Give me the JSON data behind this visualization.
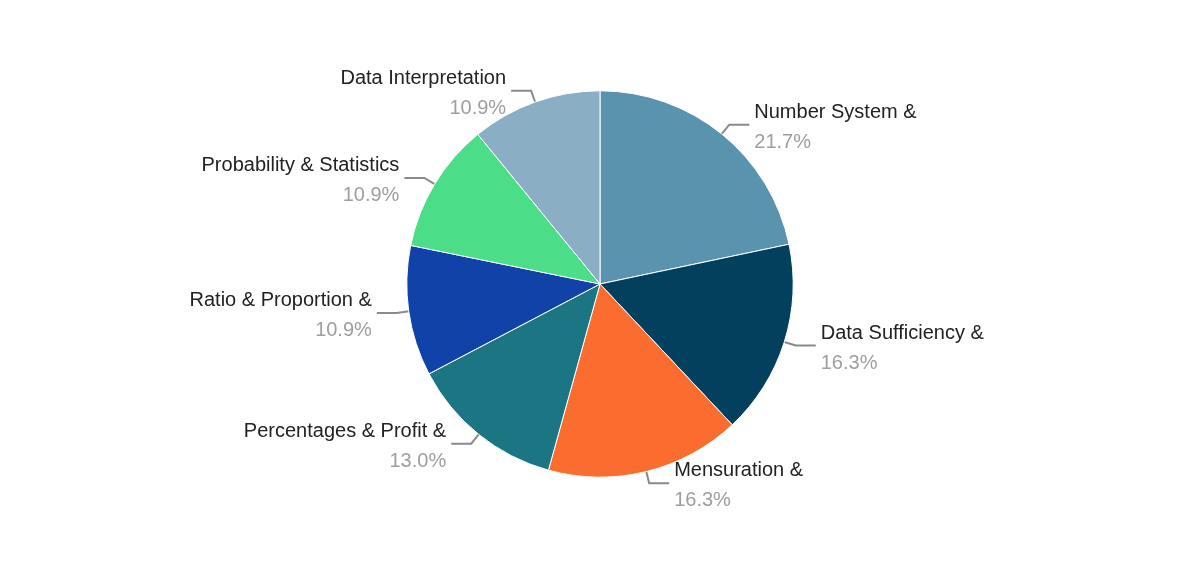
{
  "chart_data": {
    "type": "pie",
    "categories": [
      "Number System &",
      "Data Sufficiency &",
      "Mensuration &",
      "Percentages & Profit &",
      "Ratio & Proportion &",
      "Probability & Statistics",
      "Data Interpretation"
    ],
    "values": [
      21.7,
      16.3,
      16.3,
      13.0,
      10.9,
      10.9,
      10.9
    ],
    "value_labels": [
      "21.7%",
      "16.3%",
      "16.3%",
      "13.0%",
      "10.9%",
      "10.9%",
      "10.9%"
    ],
    "colors": [
      "#5a93ae",
      "#02405e",
      "#fb6d2f",
      "#1b7582",
      "#1042a8",
      "#4cdd88",
      "#8aafc4"
    ],
    "legend": false
  }
}
